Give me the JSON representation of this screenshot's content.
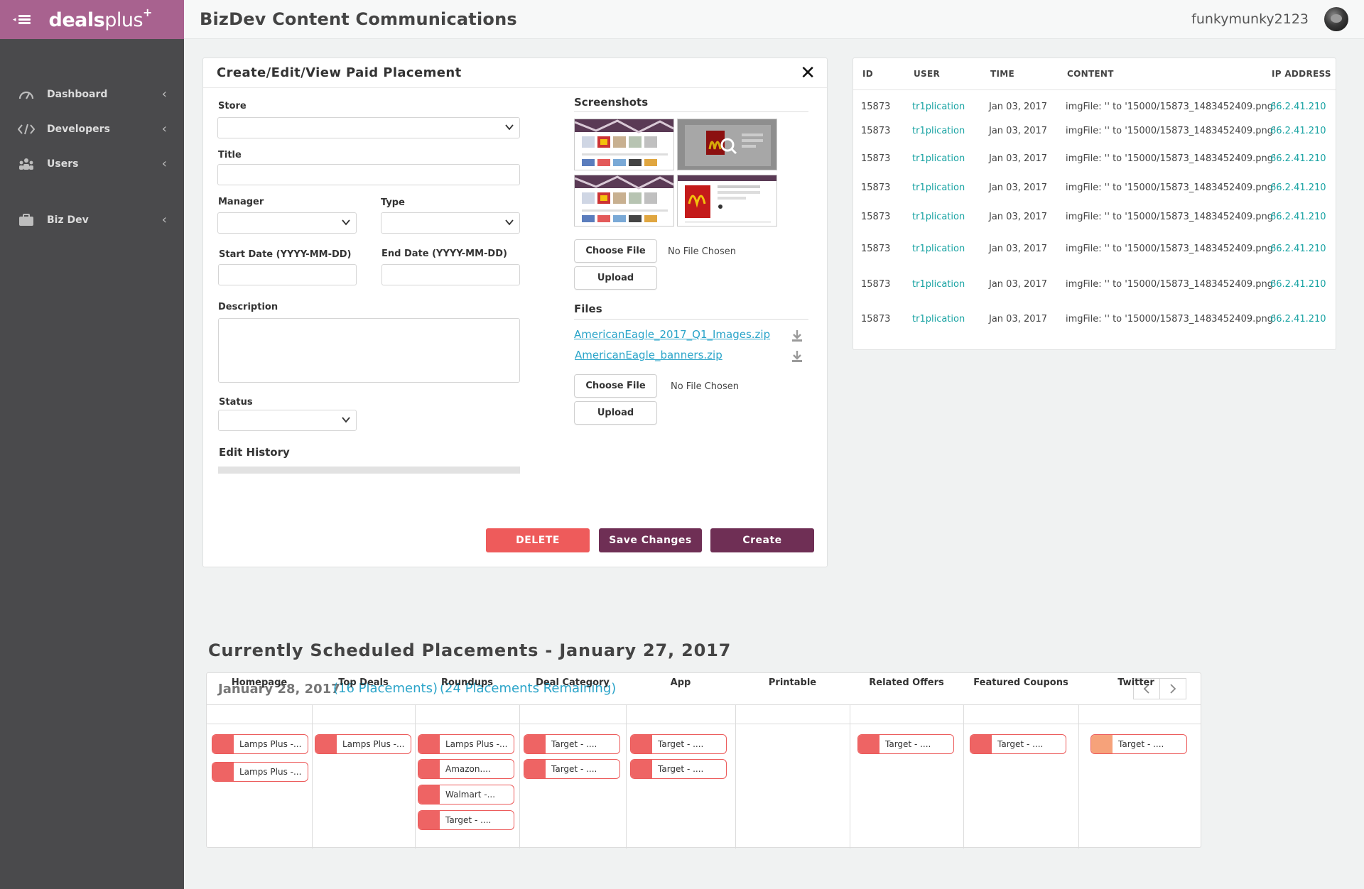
{
  "app": {
    "logo_bold": "deals",
    "logo_light": "plus",
    "logo_sup": "+",
    "title": "BizDev Content Communications",
    "username": "funkymunky2123"
  },
  "sidebar": {
    "items": [
      {
        "label": "Dashboard",
        "icon": "gauge-icon"
      },
      {
        "label": "Developers",
        "icon": "code-icon"
      },
      {
        "label": "Users",
        "icon": "users-icon"
      },
      {
        "label": "Biz Dev",
        "icon": "briefcase-icon"
      }
    ]
  },
  "form": {
    "title": "Create/Edit/View Paid Placement",
    "labels": {
      "store": "Store",
      "title": "Title",
      "manager": "Manager",
      "type": "Type",
      "start_date": "Start Date  (YYYY-MM-DD)",
      "end_date": "End Date (YYYY-MM-DD)",
      "description": "Description",
      "status": "Status",
      "edit_history": "Edit History"
    },
    "screenshots_label": "Screenshots",
    "files_label": "Files",
    "choose_file": "Choose File",
    "no_file": "No File Chosen",
    "upload": "Upload",
    "files": [
      {
        "name": "AmericanEagle_2017_Q1_Images.zip"
      },
      {
        "name": "AmericanEagle_banners.zip"
      }
    ],
    "buttons": {
      "delete": "DELETE",
      "save": "Save Changes",
      "create": "Create"
    },
    "colors": {
      "delete": "#ee5b5b",
      "save": "#6f2f55",
      "create": "#6f2f55"
    }
  },
  "log": {
    "headers": {
      "id": "ID",
      "user": "USER",
      "time": "TIME",
      "content": "CONTENT",
      "ip": "IP ADDRESS"
    },
    "rows": [
      {
        "id": "15873",
        "user": "tr1plication",
        "time": "Jan 03, 2017",
        "content": "imgFile: '' to '15000/15873_1483452409.png'",
        "ip": "66.2.41.210"
      },
      {
        "id": "15873",
        "user": "tr1plication",
        "time": "Jan 03, 2017",
        "content": "imgFile: '' to '15000/15873_1483452409.png'",
        "ip": "66.2.41.210"
      },
      {
        "id": "15873",
        "user": "tr1plication",
        "time": "Jan 03, 2017",
        "content": "imgFile: '' to '15000/15873_1483452409.png'",
        "ip": "66.2.41.210"
      },
      {
        "id": "15873",
        "user": "tr1plication",
        "time": "Jan 03, 2017",
        "content": "imgFile: '' to '15000/15873_1483452409.png'",
        "ip": "66.2.41.210"
      },
      {
        "id": "15873",
        "user": "tr1plication",
        "time": "Jan 03, 2017",
        "content": "imgFile: '' to '15000/15873_1483452409.png'",
        "ip": "66.2.41.210"
      },
      {
        "id": "15873",
        "user": "tr1plication",
        "time": "Jan 03, 2017",
        "content": "imgFile: '' to '15000/15873_1483452409.png'",
        "ip": "66.2.41.210"
      },
      {
        "id": "15873",
        "user": "tr1plication",
        "time": "Jan 03, 2017",
        "content": "imgFile: '' to '15000/15873_1483452409.png'",
        "ip": "66.2.41.210"
      },
      {
        "id": "15873",
        "user": "tr1plication",
        "time": "Jan 03, 2017",
        "content": "imgFile: '' to '15000/15873_1483452409.png'",
        "ip": "66.2.41.210"
      }
    ]
  },
  "schedule": {
    "title": "Currently Scheduled Placements - January 27, 2017",
    "date": "January 28, 2017",
    "placements": "(16 Placements)",
    "remaining": "(24 Placements Remaining)",
    "columns": [
      {
        "name": "Homepage",
        "chips": [
          {
            "text": "Lamps Plus -...",
            "color": "red"
          },
          {
            "text": "Lamps Plus -...",
            "color": "red"
          }
        ]
      },
      {
        "name": "Top Deals",
        "chips": [
          {
            "text": "Lamps Plus -...",
            "color": "red"
          }
        ]
      },
      {
        "name": "Roundups",
        "chips": [
          {
            "text": "Lamps Plus -...",
            "color": "red"
          },
          {
            "text": "Amazon....",
            "color": "red"
          },
          {
            "text": "Walmart -...",
            "color": "red"
          },
          {
            "text": "Target - ....",
            "color": "red"
          }
        ]
      },
      {
        "name": "Deal Category",
        "chips": [
          {
            "text": "Target - ....",
            "color": "red"
          },
          {
            "text": "Target - ....",
            "color": "red"
          }
        ]
      },
      {
        "name": "App",
        "chips": [
          {
            "text": "Target - ....",
            "color": "red"
          },
          {
            "text": "Target - ....",
            "color": "red"
          }
        ]
      },
      {
        "name": "Printable",
        "chips": []
      },
      {
        "name": "Related Offers",
        "chips": [
          {
            "text": "Target - ....",
            "color": "red"
          }
        ]
      },
      {
        "name": "Featured Coupons",
        "chips": [
          {
            "text": "Target - ....",
            "color": "red"
          }
        ]
      },
      {
        "name": "Twitter",
        "chips": [
          {
            "text": "Target - ....",
            "color": "orange"
          }
        ]
      }
    ]
  },
  "colors": {
    "sidebar": "#4a4a4c",
    "brand": "#a8628f",
    "teal": "#19a3a3",
    "link": "#2aa4c9"
  }
}
